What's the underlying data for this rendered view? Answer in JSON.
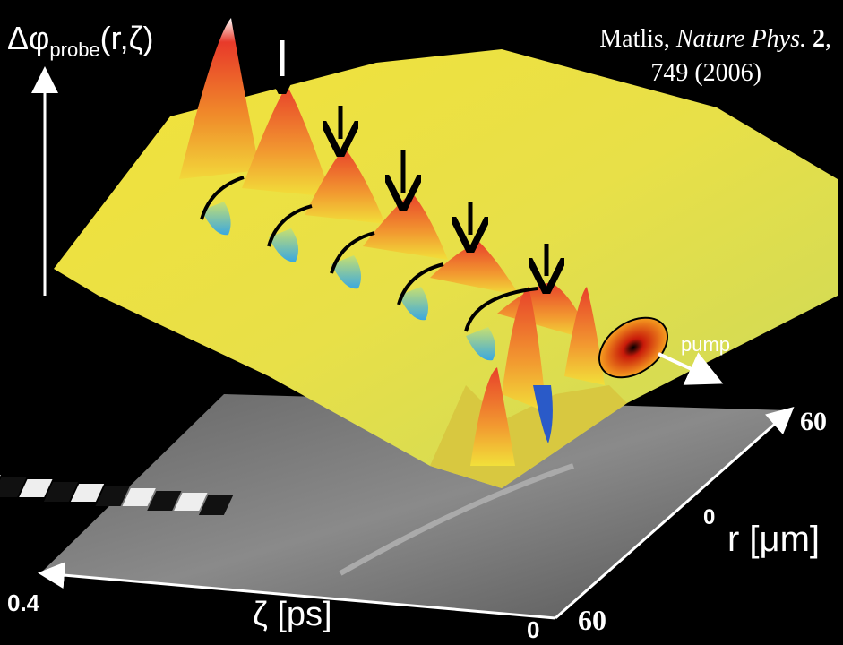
{
  "label": {
    "symbol": "Δφ",
    "subscript": "probe",
    "args": "(r,ζ)"
  },
  "citation": {
    "author": "Matlis,",
    "journal": "Nature Phys.",
    "volume": "2",
    "separator": ",",
    "pages": "749 (2006)"
  },
  "zeta_axis": {
    "label": "ζ [ps]",
    "ticks": [
      "0.4",
      "0"
    ]
  },
  "r_axis": {
    "label": "r [μm]",
    "ticks": [
      "60",
      "0",
      "60"
    ]
  },
  "annotation": "pump"
}
